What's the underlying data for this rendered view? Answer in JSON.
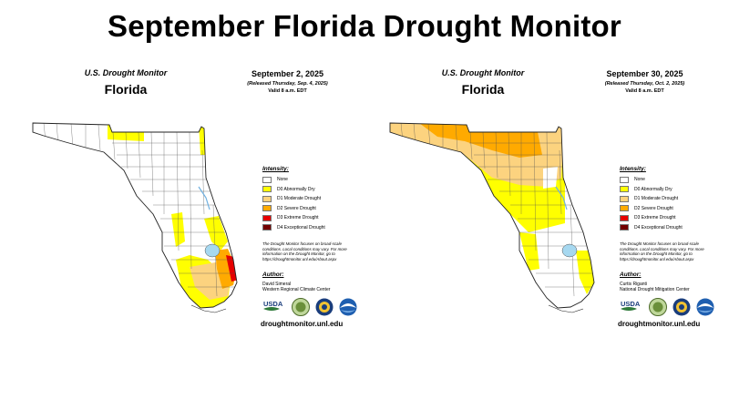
{
  "title": "September Florida Drought Monitor",
  "legend": {
    "title": "Intensity:",
    "items": [
      {
        "label": "None",
        "color": "#ffffff"
      },
      {
        "label": "D0 Abnormally Dry",
        "color": "#ffff00"
      },
      {
        "label": "D1 Moderate Drought",
        "color": "#fcd37f"
      },
      {
        "label": "D2 Severe Drought",
        "color": "#ffaa00"
      },
      {
        "label": "D3 Extreme Drought",
        "color": "#e60000"
      },
      {
        "label": "D4 Exceptional Drought",
        "color": "#730000"
      }
    ]
  },
  "note": "The Drought Monitor focuses on broad-scale conditions. Local conditions may vary. For more information on the Drought Monitor, go to https://droughtmonitor.unl.edu/About.aspx",
  "panels": [
    {
      "header": "U.S. Drought Monitor",
      "state": "Florida",
      "date": "September 2, 2025",
      "released": "(Released Thursday, Sep. 4, 2025)",
      "valid": "Valid 8 a.m. EDT",
      "author_label": "Author:",
      "author_name": "David Simeral",
      "author_org": "Western Regional Climate Center",
      "website": "droughtmonitor.unl.edu",
      "logos": [
        "usda-logo",
        "ndmc-logo",
        "noaa-doc-logo",
        "noaa-logo"
      ],
      "usda_text": "USDA"
    },
    {
      "header": "U.S. Drought Monitor",
      "state": "Florida",
      "date": "September 30, 2025",
      "released": "(Released Thursday, Oct. 2, 2025)",
      "valid": "Valid 8 a.m. EDT",
      "author_label": "Author:",
      "author_name": "Curtis Riganti",
      "author_org": "National Drought Mitigation Center",
      "website": "droughtmonitor.unl.edu",
      "logos": [
        "usda-logo",
        "ndmc-logo",
        "noaa-doc-logo",
        "noaa-logo"
      ],
      "usda_text": "USDA"
    }
  ]
}
